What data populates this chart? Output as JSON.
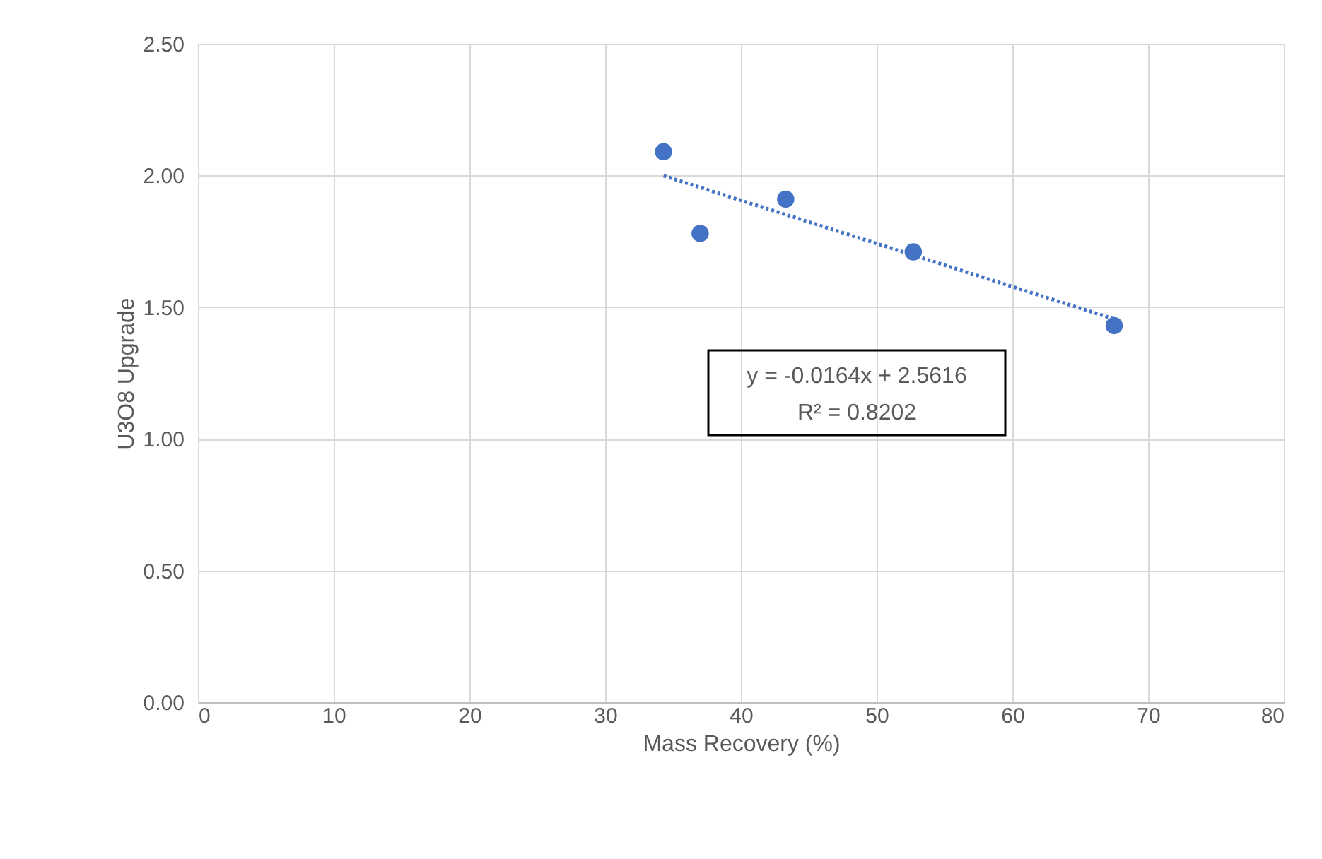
{
  "chart_data": {
    "type": "scatter",
    "xlabel": "Mass Recovery (%)",
    "ylabel": "U3O8 Upgrade",
    "x": [
      34.3,
      37.0,
      43.3,
      52.7,
      67.5
    ],
    "series": [
      {
        "color": "#4472c4",
        "marker": "circle",
        "values": [
          2.09,
          1.78,
          1.91,
          1.71,
          1.43
        ]
      },
      {
        "type": "line",
        "color": "#4472c4",
        "line_style": "dotted",
        "x": [
          34.3,
          67.5
        ],
        "values": [
          1.999,
          1.455
        ]
      }
    ],
    "annotations": [
      "y = -0.0164x + 2.5616",
      "R² = 0.8202"
    ],
    "xlim": [
      0,
      80
    ],
    "xticks": [
      0,
      10,
      20,
      30,
      40,
      50,
      60,
      70,
      80
    ],
    "ylim": [
      0,
      2.5
    ],
    "yticks": [
      {
        "value": 0,
        "label": "0.00"
      },
      {
        "value": 0.5,
        "label": "0.50"
      },
      {
        "value": 1,
        "label": "1.00"
      },
      {
        "value": 1.5,
        "label": "1.50"
      },
      {
        "value": 2,
        "label": "2.00"
      },
      {
        "value": 2.5,
        "label": "2.50"
      }
    ],
    "grid": true
  }
}
